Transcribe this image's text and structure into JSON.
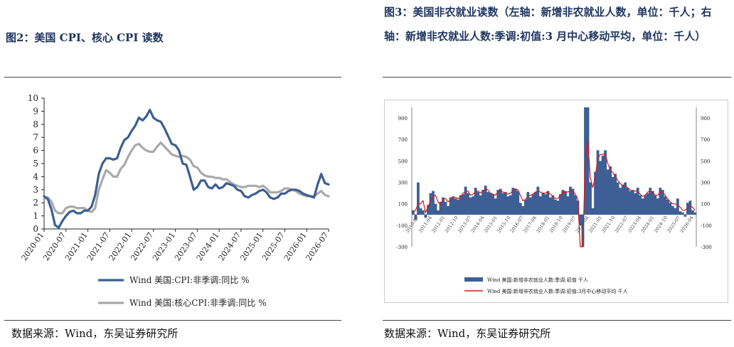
{
  "left_panel": {
    "title": "图2：美国 CPI、核心 CPI 读数",
    "source": "数据来源：Wind，东吴证券研究所"
  },
  "right_panel": {
    "title": "图3：美国非农就业读数（左轴：新增非农就业人数，单位：千人；右轴：新增非农就业人数:季调:初值:3 月中心移动平均，单位：千人）",
    "source": "数据来源：Wind，东吴证券研究所"
  },
  "colors": {
    "cpi": "#3a5f92",
    "core": "#a9a9a9",
    "payrolls_bar": "#3d5f95",
    "payrolls_ma": "#d01c1c"
  },
  "chart_data": [
    {
      "type": "line",
      "title": "",
      "xlabel": "",
      "ylabel": "",
      "ylim": [
        0,
        10
      ],
      "yticks": [
        0,
        1,
        2,
        3,
        4,
        5,
        6,
        7,
        8,
        9,
        10
      ],
      "xticks": [
        "2020-01",
        "2020-07",
        "2021-01",
        "2021-07",
        "2022-01",
        "2022-07",
        "2023-01",
        "2023-07",
        "2024-01",
        "2024-07",
        "2025-01",
        "2025-07",
        "2026-01",
        "2026-07"
      ],
      "grid": false,
      "legend": "bottom",
      "x": [
        "2020-01",
        "2020-02",
        "2020-03",
        "2020-04",
        "2020-05",
        "2020-06",
        "2020-07",
        "2020-08",
        "2020-09",
        "2020-10",
        "2020-11",
        "2020-12",
        "2021-01",
        "2021-02",
        "2021-03",
        "2021-04",
        "2021-05",
        "2021-06",
        "2021-07",
        "2021-08",
        "2021-09",
        "2021-10",
        "2021-11",
        "2021-12",
        "2022-01",
        "2022-02",
        "2022-03",
        "2022-04",
        "2022-05",
        "2022-06",
        "2022-07",
        "2022-08",
        "2022-09",
        "2022-10",
        "2022-11",
        "2022-12",
        "2023-01",
        "2023-02",
        "2023-03",
        "2023-04",
        "2023-05",
        "2023-06",
        "2023-07",
        "2023-08",
        "2023-09",
        "2023-10",
        "2023-11",
        "2023-12",
        "2024-01",
        "2024-02",
        "2024-03",
        "2024-04",
        "2024-05",
        "2024-06",
        "2024-07",
        "2024-08",
        "2024-09",
        "2024-10",
        "2024-11",
        "2024-12",
        "2025-01",
        "2025-02",
        "2025-03",
        "2025-04",
        "2025-05",
        "2025-06",
        "2025-07",
        "2025-08",
        "2025-09",
        "2025-10",
        "2025-11",
        "2025-12",
        "2026-01",
        "2026-02",
        "2026-03",
        "2026-04",
        "2026-05",
        "2026-06",
        "2026-07"
      ],
      "series": [
        {
          "name": "Wind 美国:CPI:非季调:同比 %",
          "values": [
            2.5,
            2.3,
            1.5,
            0.3,
            0.1,
            0.6,
            1.0,
            1.3,
            1.4,
            1.2,
            1.2,
            1.4,
            1.4,
            1.7,
            2.6,
            4.2,
            5.0,
            5.4,
            5.4,
            5.3,
            5.4,
            6.2,
            6.8,
            7.0,
            7.5,
            7.9,
            8.5,
            8.3,
            8.6,
            9.1,
            8.5,
            8.3,
            8.2,
            7.7,
            7.1,
            6.5,
            6.4,
            6.0,
            5.0,
            4.9,
            4.0,
            3.0,
            3.2,
            3.7,
            3.7,
            3.2,
            3.1,
            3.4,
            3.1,
            3.2,
            3.5,
            3.4,
            3.3,
            3.0,
            2.9,
            2.5,
            2.4,
            2.6,
            2.7,
            2.9,
            3.0,
            2.8,
            2.4,
            2.3,
            2.4,
            2.7,
            2.7,
            2.9,
            3.0,
            3.0,
            2.9,
            2.7,
            2.6,
            2.5,
            2.4,
            3.4,
            4.2,
            3.5,
            3.4
          ]
        },
        {
          "name": "Wind 美国:核心CPI:非季调:同比 %",
          "values": [
            2.3,
            2.4,
            2.1,
            1.4,
            1.2,
            1.2,
            1.6,
            1.7,
            1.7,
            1.6,
            1.6,
            1.6,
            1.4,
            1.3,
            1.6,
            3.0,
            3.8,
            4.5,
            4.3,
            4.0,
            4.0,
            4.6,
            4.9,
            5.5,
            6.0,
            6.4,
            6.5,
            6.2,
            6.0,
            5.9,
            5.9,
            6.3,
            6.6,
            6.3,
            6.0,
            5.7,
            5.6,
            5.5,
            5.6,
            5.5,
            5.3,
            4.8,
            4.7,
            4.3,
            4.1,
            4.0,
            4.0,
            3.9,
            3.9,
            3.8,
            3.8,
            3.6,
            3.4,
            3.3,
            3.2,
            3.2,
            3.3,
            3.3,
            3.3,
            3.2,
            3.3,
            3.1,
            2.8,
            2.8,
            2.8,
            2.9,
            3.1,
            3.1,
            3.0,
            2.9,
            2.7,
            2.6,
            2.5,
            2.5,
            2.5,
            2.7,
            2.9,
            2.6,
            2.5
          ]
        }
      ]
    },
    {
      "type": "bar",
      "title": "",
      "xlabel": "",
      "ylabel_left": "",
      "ylabel_right": "",
      "ylim": [
        -300,
        1000
      ],
      "yticks_left": [
        "-300",
        "-100",
        "100",
        "300",
        "500",
        "700",
        "900"
      ],
      "yticks_right": [
        "-300",
        "-100",
        "100",
        "300",
        "500",
        "700",
        "900"
      ],
      "xticks": [
        "2010-07",
        "2011-04",
        "2012-01",
        "2012-10",
        "2013-07",
        "2014-04",
        "2015-01",
        "2015-10",
        "2016-07",
        "2017-04",
        "2018-01",
        "2018-10",
        "2019-07",
        "2020-04",
        "2021-01",
        "2021-10",
        "2022-07",
        "2023-04",
        "2024-01",
        "2024-10",
        "2025-07",
        "2026-04"
      ],
      "legend": "bottom",
      "series": [
        {
          "name": "Wind 美国:新增非农就业人数:季调:初值 千人",
          "values": [
            40,
            -50,
            300,
            60,
            40,
            -30,
            90,
            200,
            220,
            100,
            40,
            120,
            160,
            120,
            80,
            160,
            170,
            150,
            140,
            180,
            190,
            260,
            200,
            160,
            170,
            250,
            210,
            180,
            230,
            270,
            210,
            200,
            190,
            150,
            230,
            240,
            200,
            210,
            170,
            180,
            250,
            240,
            220,
            110,
            80,
            140,
            210,
            160,
            190,
            210,
            260,
            170,
            200,
            190,
            220,
            160,
            180,
            140,
            130,
            190,
            230,
            220,
            170,
            260,
            240,
            180,
            130,
            -100,
            -900,
            1000,
            1000,
            300,
            60,
            400,
            600,
            500,
            550,
            600,
            420,
            450,
            350,
            380,
            300,
            250,
            280,
            300,
            250,
            220,
            230,
            200,
            250,
            180,
            150,
            180,
            200,
            250,
            220,
            180,
            150,
            250,
            230,
            170,
            140,
            110,
            80,
            60,
            150,
            30,
            20,
            -20,
            110,
            130,
            40,
            20
          ]
        },
        {
          "name": "Wind 美国:新增非农就业人数:季调:初值:3月中心移动平均 千人",
          "values": [
            20,
            40,
            100,
            100,
            130,
            20,
            70,
            130,
            170,
            180,
            120,
            90,
            140,
            150,
            120,
            140,
            160,
            160,
            150,
            160,
            200,
            210,
            220,
            180,
            190,
            210,
            220,
            200,
            220,
            240,
            230,
            200,
            190,
            180,
            210,
            220,
            210,
            200,
            190,
            200,
            220,
            240,
            230,
            180,
            130,
            140,
            170,
            180,
            190,
            210,
            220,
            210,
            200,
            200,
            210,
            190,
            170,
            150,
            150,
            180,
            210,
            210,
            210,
            220,
            220,
            190,
            150,
            -300,
            -800,
            500,
            700,
            350,
            250,
            350,
            520,
            560,
            560,
            570,
            480,
            420,
            390,
            360,
            320,
            290,
            270,
            270,
            250,
            230,
            220,
            220,
            220,
            190,
            170,
            180,
            210,
            220,
            210,
            180,
            180,
            210,
            210,
            180,
            150,
            120,
            100,
            100,
            90,
            70,
            40,
            40,
            60,
            80,
            70,
            40
          ]
        }
      ]
    }
  ]
}
